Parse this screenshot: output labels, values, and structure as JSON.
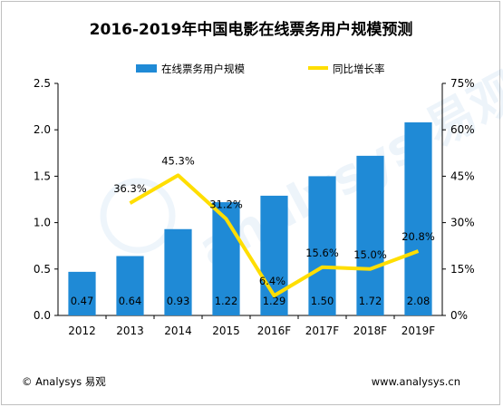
{
  "chart_data": {
    "type": "bar",
    "title": "2016-2019年中国电影在线票务用户规模预测",
    "categories": [
      "2012",
      "2013",
      "2014",
      "2015",
      "2016F",
      "2017F",
      "2018F",
      "2019F"
    ],
    "series": [
      {
        "name": "在线票务用户规模",
        "type": "bar",
        "axis": "left",
        "values": [
          0.47,
          0.64,
          0.93,
          1.22,
          1.29,
          1.5,
          1.72,
          2.08
        ],
        "labels": [
          "0.47",
          "0.64",
          "0.93",
          "1.22",
          "1.29",
          "1.50",
          "1.72",
          "2.08"
        ],
        "color": "#1f8ad6"
      },
      {
        "name": "同比增长率",
        "type": "line",
        "axis": "right",
        "points": [
          {
            "x": "2013",
            "y": 36.3,
            "label": "36.3%"
          },
          {
            "x": "2014",
            "y": 45.3,
            "label": "45.3%"
          },
          {
            "x": "2015",
            "y": 31.2,
            "label": "31.2%"
          },
          {
            "x": "2016F",
            "y": 6.4,
            "label": "6.4%"
          },
          {
            "x": "2017F",
            "y": 15.6,
            "label": "15.6%"
          },
          {
            "x": "2018F",
            "y": 15.0,
            "label": "15.0%"
          },
          {
            "x": "2019F",
            "y": 20.8,
            "label": "20.8%"
          }
        ],
        "color": "#ffde00"
      }
    ],
    "ylim": [
      0,
      2.5
    ],
    "yticks": [
      "0.0",
      "0.5",
      "1.0",
      "1.5",
      "2.0",
      "2.5"
    ],
    "y2lim": [
      0,
      75
    ],
    "y2ticks": [
      "0%",
      "15%",
      "30%",
      "45%",
      "60%",
      "75%"
    ],
    "legend_position": "top-center",
    "grid": false
  },
  "footer": {
    "copyright": "© Analysys 易观",
    "website": "www.analysys.cn"
  },
  "watermark": {
    "text": "Analysys 易观"
  }
}
